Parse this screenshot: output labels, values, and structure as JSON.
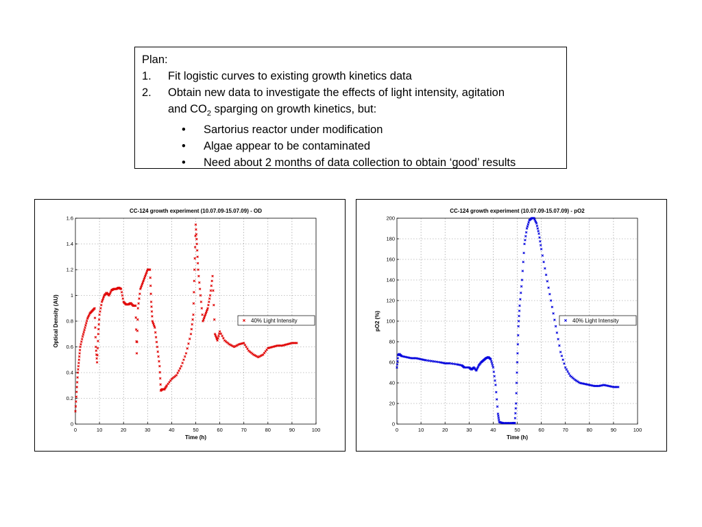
{
  "plan": {
    "title": "Plan:",
    "items": [
      {
        "num": "1.",
        "text": "Fit logistic curves to existing growth kinetics data"
      },
      {
        "num": "2.",
        "text_a": "Obtain new data to investigate the effects of light intensity, agitation",
        "text_b1": "and CO",
        "sub": "2",
        "text_b2": " sparging on growth kinetics, but:"
      }
    ],
    "bullets": [
      {
        "sym": "•",
        "text": "Sartorius reactor under modification"
      },
      {
        "sym": "•",
        "text": "Algae appear to be contaminated"
      },
      {
        "sym": "•",
        "text": "Need about 2 months of data collection to obtain ‘good’ results"
      }
    ]
  },
  "chart_data": [
    {
      "type": "scatter",
      "title": "CC-124 growth experiment (10.07.09-15.07.09) - OD",
      "xlabel": "Time (h)",
      "ylabel": "Optical Density (AU)",
      "xlim": [
        0,
        100
      ],
      "ylim": [
        0,
        1.6
      ],
      "xticks": [
        0,
        10,
        20,
        30,
        40,
        50,
        60,
        70,
        80,
        90,
        100
      ],
      "yticks": [
        0,
        0.2,
        0.4,
        0.6,
        0.8,
        1,
        1.2,
        1.4,
        1.6
      ],
      "grid": true,
      "legend_position": "right",
      "color": "#e00000",
      "marker": "x",
      "series": [
        {
          "name": "40% Light Intensity",
          "points": [
            [
              0,
              0.1
            ],
            [
              0.5,
              0.25
            ],
            [
              1,
              0.4
            ],
            [
              1.5,
              0.5
            ],
            [
              2,
              0.6
            ],
            [
              3,
              0.68
            ],
            [
              4,
              0.75
            ],
            [
              5,
              0.82
            ],
            [
              6,
              0.86
            ],
            [
              7,
              0.88
            ],
            [
              8,
              0.9
            ],
            [
              8.5,
              0.6
            ],
            [
              9,
              0.48
            ],
            [
              9.5,
              0.7
            ],
            [
              10,
              0.85
            ],
            [
              11,
              0.95
            ],
            [
              12,
              1.0
            ],
            [
              13,
              1.02
            ],
            [
              14,
              1.0
            ],
            [
              15,
              1.04
            ],
            [
              16,
              1.05
            ],
            [
              17,
              1.05
            ],
            [
              18,
              1.06
            ],
            [
              19,
              1.05
            ],
            [
              20,
              0.95
            ],
            [
              21,
              0.93
            ],
            [
              22,
              0.93
            ],
            [
              23,
              0.94
            ],
            [
              24,
              0.92
            ],
            [
              25,
              0.92
            ],
            [
              25.5,
              0.55
            ],
            [
              26,
              0.9
            ],
            [
              27,
              1.05
            ],
            [
              28,
              1.1
            ],
            [
              29,
              1.15
            ],
            [
              30,
              1.2
            ],
            [
              31,
              1.2
            ],
            [
              31.5,
              0.95
            ],
            [
              32,
              0.8
            ],
            [
              33,
              0.75
            ],
            [
              34,
              0.6
            ],
            [
              35,
              0.45
            ],
            [
              35.5,
              0.26
            ],
            [
              36,
              0.27
            ],
            [
              37,
              0.27
            ],
            [
              38,
              0.3
            ],
            [
              40,
              0.35
            ],
            [
              42,
              0.38
            ],
            [
              44,
              0.45
            ],
            [
              46,
              0.55
            ],
            [
              48,
              0.7
            ],
            [
              49,
              0.85
            ],
            [
              49.5,
              1.2
            ],
            [
              50,
              1.55
            ],
            [
              50.5,
              1.4
            ],
            [
              51,
              1.2
            ],
            [
              52,
              1.0
            ],
            [
              53,
              0.8
            ],
            [
              54,
              0.85
            ],
            [
              55,
              0.9
            ],
            [
              56,
              1.0
            ],
            [
              57,
              1.15
            ],
            [
              58,
              0.7
            ],
            [
              59,
              0.65
            ],
            [
              60,
              0.72
            ],
            [
              62,
              0.65
            ],
            [
              64,
              0.62
            ],
            [
              66,
              0.6
            ],
            [
              68,
              0.62
            ],
            [
              70,
              0.63
            ],
            [
              72,
              0.57
            ],
            [
              74,
              0.54
            ],
            [
              76,
              0.52
            ],
            [
              78,
              0.54
            ],
            [
              80,
              0.59
            ],
            [
              82,
              0.6
            ],
            [
              84,
              0.61
            ],
            [
              86,
              0.61
            ],
            [
              88,
              0.62
            ],
            [
              90,
              0.63
            ],
            [
              92,
              0.63
            ]
          ]
        }
      ]
    },
    {
      "type": "scatter",
      "title": "CC-124 growth experiment (10.07.09-15.07.09) - pO2",
      "xlabel": "Time (h)",
      "ylabel": "pO2 (%)",
      "xlim": [
        0,
        100
      ],
      "ylim": [
        0,
        200
      ],
      "xticks": [
        0,
        10,
        20,
        30,
        40,
        50,
        60,
        70,
        80,
        90,
        100
      ],
      "yticks": [
        0,
        20,
        40,
        60,
        80,
        100,
        120,
        140,
        160,
        180,
        200
      ],
      "grid": true,
      "legend_position": "right",
      "color": "#0000dd",
      "marker": "x",
      "series": [
        {
          "name": "40% Light Intensity",
          "points": [
            [
              0,
              55
            ],
            [
              0.5,
              67
            ],
            [
              1,
              68
            ],
            [
              2,
              66
            ],
            [
              4,
              65
            ],
            [
              6,
              64
            ],
            [
              8,
              64
            ],
            [
              10,
              63
            ],
            [
              12,
              62
            ],
            [
              15,
              61
            ],
            [
              18,
              60
            ],
            [
              20,
              59
            ],
            [
              22,
              59
            ],
            [
              25,
              58
            ],
            [
              27,
              57
            ],
            [
              28,
              55
            ],
            [
              30,
              55
            ],
            [
              31,
              53
            ],
            [
              32,
              55
            ],
            [
              33,
              52
            ],
            [
              34,
              57
            ],
            [
              35,
              60
            ],
            [
              36,
              62
            ],
            [
              37,
              64
            ],
            [
              38,
              65
            ],
            [
              39,
              63
            ],
            [
              40,
              55
            ],
            [
              41,
              38
            ],
            [
              42,
              10
            ],
            [
              42.5,
              2
            ],
            [
              44,
              1
            ],
            [
              46,
              1
            ],
            [
              48,
              1
            ],
            [
              49,
              1
            ],
            [
              49.5,
              20
            ],
            [
              50,
              60
            ],
            [
              50.5,
              95
            ],
            [
              51,
              115
            ],
            [
              52,
              140
            ],
            [
              53,
              175
            ],
            [
              54,
              190
            ],
            [
              55,
              198
            ],
            [
              56,
              200
            ],
            [
              57,
              200
            ],
            [
              58,
              195
            ],
            [
              59,
              185
            ],
            [
              60,
              170
            ],
            [
              62,
              145
            ],
            [
              64,
              120
            ],
            [
              66,
              95
            ],
            [
              68,
              70
            ],
            [
              70,
              55
            ],
            [
              72,
              47
            ],
            [
              74,
              43
            ],
            [
              76,
              40
            ],
            [
              78,
              39
            ],
            [
              80,
              38
            ],
            [
              82,
              37
            ],
            [
              84,
              37
            ],
            [
              86,
              38
            ],
            [
              88,
              37
            ],
            [
              90,
              36
            ],
            [
              92,
              36
            ]
          ]
        }
      ]
    }
  ]
}
